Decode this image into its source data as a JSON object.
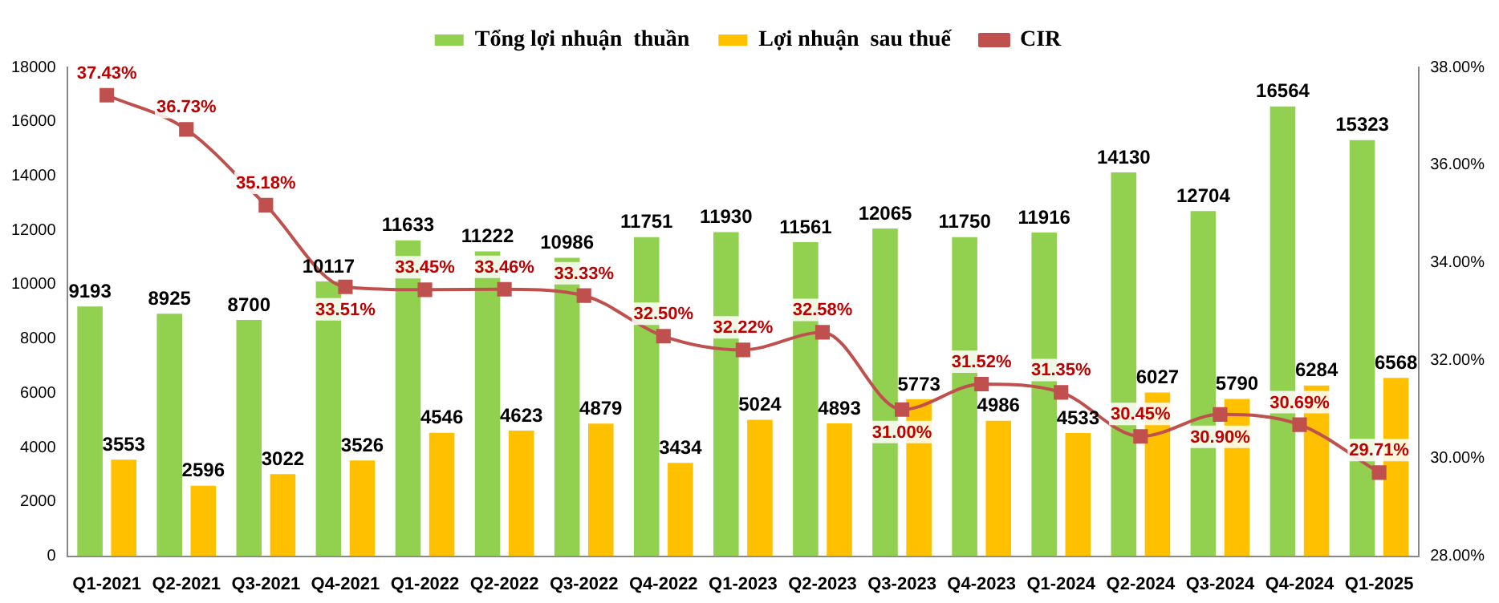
{
  "chart_data": {
    "type": "bar",
    "categories": [
      "Q1-2021",
      "Q2-2021",
      "Q3-2021",
      "Q4-2021",
      "Q1-2022",
      "Q2-2022",
      "Q3-2022",
      "Q4-2022",
      "Q1-2023",
      "Q2-2023",
      "Q3-2023",
      "Q4-2023",
      "Q1-2024",
      "Q2-2024",
      "Q3-2024",
      "Q4-2024",
      "Q1-2025"
    ],
    "series": [
      {
        "name": "Tổng lợi nhuận  thuần",
        "color": "#92d050",
        "values": [
          9193,
          8925,
          8700,
          10117,
          11633,
          11222,
          10986,
          11751,
          11930,
          11561,
          12065,
          11750,
          11916,
          14130,
          12704,
          16564,
          15323
        ]
      },
      {
        "name": "Lợi nhuận  sau thuế",
        "color": "#ffc000",
        "values": [
          3553,
          2596,
          3022,
          3526,
          4546,
          4623,
          4879,
          3434,
          5024,
          4893,
          5773,
          4986,
          4533,
          6027,
          5790,
          6284,
          6568
        ]
      },
      {
        "name": "CIR",
        "type": "line",
        "axis": "y2",
        "color": "#c0504d",
        "marker": "square",
        "values": [
          37.43,
          36.73,
          35.18,
          33.51,
          33.45,
          33.46,
          33.33,
          32.5,
          32.22,
          32.58,
          31.0,
          31.52,
          31.35,
          30.45,
          30.9,
          30.69,
          29.71
        ],
        "value_labels": [
          "37.43%",
          "36.73%",
          "35.18%",
          "33.51%",
          "33.45%",
          "33.46%",
          "33.33%",
          "32.50%",
          "32.22%",
          "32.58%",
          "31.00%",
          "31.52%",
          "31.35%",
          "30.45%",
          "30.90%",
          "30.69%",
          "29.71%"
        ]
      }
    ],
    "ylim": [
      0,
      18000
    ],
    "yticks": [
      0,
      2000,
      4000,
      6000,
      8000,
      10000,
      12000,
      14000,
      16000,
      18000
    ],
    "y2lim": [
      28,
      38
    ],
    "y2ticks": [
      {
        "value": 28,
        "label": "28.00%"
      },
      {
        "value": 30,
        "label": "30.00%"
      },
      {
        "value": 32,
        "label": "32.00%"
      },
      {
        "value": 34,
        "label": "34.00%"
      },
      {
        "value": 36,
        "label": "36.00%"
      },
      {
        "value": 38,
        "label": "38.00%"
      }
    ],
    "data_labels": true,
    "legend": "top",
    "grid": false
  }
}
